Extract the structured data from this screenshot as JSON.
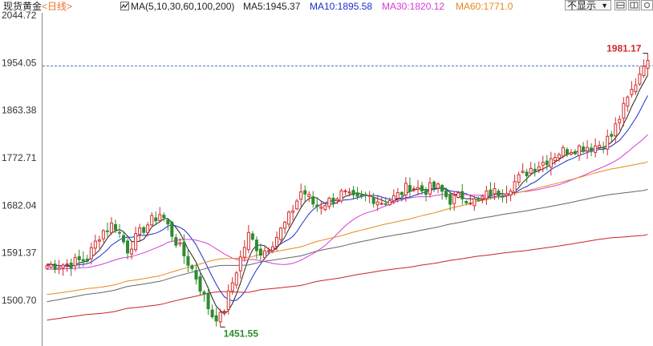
{
  "header": {
    "instrument": "现货黄金",
    "period": "<日线>",
    "ma_params": "MA(5,10,30,60,100,200)",
    "ma5": "MA5:1945.37",
    "ma10": "MA10:1895.58",
    "ma30": "MA30:1820.12",
    "ma60": "MA60:1771.0",
    "hide_label": "不显示",
    "colors": {
      "ma5": "#222222",
      "ma10": "#1a2fd2",
      "ma30": "#d63cd6",
      "ma60": "#e8891a",
      "ma100": "#666666",
      "ma200": "#cc2222"
    }
  },
  "chart_data": {
    "type": "candlestick",
    "y_ticks": [
      "2044.72",
      "1954.05",
      "1863.38",
      "1772.71",
      "1682.04",
      "1591.37",
      "1500.70"
    ],
    "ylim": [
      1420,
      2044.72
    ],
    "annotations": {
      "high_label": "1981.17",
      "low_label": "1451.55",
      "current_line": 1948
    },
    "up_color": "#d42a2a",
    "down_color": "#2e8b2e",
    "n_candles": 150,
    "anchors": [
      [
        0,
        1567
      ],
      [
        6,
        1570
      ],
      [
        12,
        1580
      ],
      [
        16,
        1630
      ],
      [
        20,
        1648
      ],
      [
        24,
        1598
      ],
      [
        29,
        1640
      ],
      [
        34,
        1668
      ],
      [
        38,
        1618
      ],
      [
        44,
        1552
      ],
      [
        49,
        1473
      ],
      [
        52,
        1468
      ],
      [
        56,
        1550
      ],
      [
        60,
        1625
      ],
      [
        64,
        1590
      ],
      [
        68,
        1618
      ],
      [
        72,
        1658
      ],
      [
        76,
        1712
      ],
      [
        80,
        1680
      ],
      [
        84,
        1690
      ],
      [
        88,
        1705
      ],
      [
        92,
        1690
      ],
      [
        96,
        1700
      ],
      [
        100,
        1688
      ],
      [
        104,
        1698
      ],
      [
        108,
        1720
      ],
      [
        112,
        1710
      ],
      [
        116,
        1718
      ],
      [
        120,
        1692
      ],
      [
        124,
        1700
      ],
      [
        128,
        1688
      ],
      [
        132,
        1706
      ],
      [
        136,
        1708
      ],
      [
        140,
        1730
      ],
      [
        144,
        1752
      ],
      [
        148,
        1765
      ],
      [
        152,
        1782
      ],
      [
        156,
        1790
      ],
      [
        160,
        1794
      ],
      [
        164,
        1796
      ],
      [
        168,
        1812
      ],
      [
        172,
        1870
      ],
      [
        176,
        1925
      ],
      [
        178,
        1960
      ],
      [
        179,
        1950
      ]
    ],
    "ma_end_values": {
      "ma5": 1945.37,
      "ma10": 1895.58,
      "ma30": 1820.12,
      "ma60": 1771.0,
      "ma100": 1718,
      "ma200": 1632
    }
  }
}
